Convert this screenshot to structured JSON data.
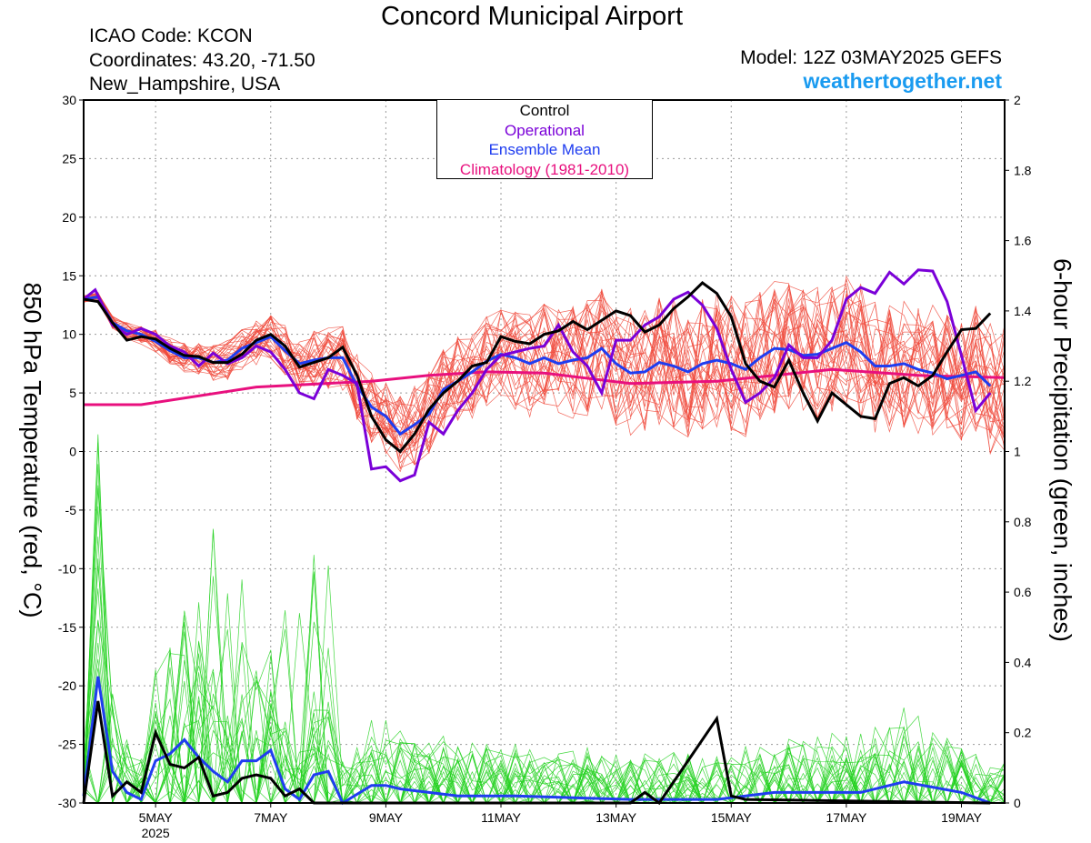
{
  "header": {
    "title": "Concord Municipal Airport",
    "icao": "ICAO Code: KCON",
    "coordinates": "Coordinates: 43.20, -71.50",
    "location": "New_Hampshire, USA",
    "model": "Model: 12Z 03MAY2025 GEFS",
    "website": "weathertogether.net"
  },
  "legend": {
    "items": [
      {
        "label": "Control",
        "color": "#000000"
      },
      {
        "label": "Operational",
        "color": "#7a00d8"
      },
      {
        "label": "Ensemble Mean",
        "color": "#1f3df0"
      },
      {
        "label": "Climatology (1981-2010)",
        "color": "#e8107e"
      }
    ]
  },
  "chart_data": {
    "type": "line",
    "ylabel": "850 hPa Temperature (red, °C)",
    "y2label": "6-hour Precipitation (green, inches)",
    "ylim": [
      -30,
      30
    ],
    "y2lim": [
      0,
      2
    ],
    "yticks": [
      "30",
      "25",
      "20",
      "15",
      "10",
      "5",
      "0",
      "-5",
      "-10",
      "-15",
      "-20",
      "-25",
      "-30"
    ],
    "y2ticks": [
      "2",
      "1.8",
      "1.6",
      "1.4",
      "1.2",
      "1",
      "0.8",
      "0.6",
      "0.4",
      "0.2",
      "0"
    ],
    "xlim": [
      0,
      16
    ],
    "xticks": [
      {
        "x": 1.25,
        "label": "5MAY",
        "sub": "2025"
      },
      {
        "x": 3.25,
        "label": "7MAY"
      },
      {
        "x": 5.25,
        "label": "9MAY"
      },
      {
        "x": 7.25,
        "label": "11MAY"
      },
      {
        "x": 9.25,
        "label": "13MAY"
      },
      {
        "x": 11.25,
        "label": "15MAY"
      },
      {
        "x": 13.25,
        "label": "17MAY"
      },
      {
        "x": 15.25,
        "label": "19MAY"
      }
    ],
    "grid": true,
    "x_units": "days since 12Z 03MAY2025",
    "colors": {
      "members_temp": "#f04a3c",
      "members_precip": "#22d11f",
      "control": "#000000",
      "operational": "#7a00d8",
      "mean": "#1f3df0",
      "climatology": "#e8107e"
    },
    "climatology": [
      [
        0,
        4
      ],
      [
        1,
        4
      ],
      [
        3,
        5.5
      ],
      [
        5,
        6
      ],
      [
        6,
        6.5
      ],
      [
        7,
        6.8
      ],
      [
        8,
        6.7
      ],
      [
        9.5,
        5.8
      ],
      [
        11,
        6
      ],
      [
        13,
        7
      ],
      [
        14.5,
        6.5
      ],
      [
        16,
        6.3
      ]
    ],
    "control_temp": [
      [
        0,
        13
      ],
      [
        0.25,
        12.8
      ],
      [
        0.5,
        11
      ],
      [
        0.75,
        9.5
      ],
      [
        1,
        9.8
      ],
      [
        1.25,
        9.6
      ],
      [
        1.5,
        8.8
      ],
      [
        1.75,
        8.2
      ],
      [
        2,
        8.1
      ],
      [
        2.25,
        7.6
      ],
      [
        2.5,
        7.6
      ],
      [
        2.75,
        8.3
      ],
      [
        3,
        9.5
      ],
      [
        3.25,
        10
      ],
      [
        3.5,
        9
      ],
      [
        3.75,
        7.2
      ],
      [
        4,
        7.6
      ],
      [
        4.25,
        8
      ],
      [
        4.5,
        8.9
      ],
      [
        4.75,
        6.5
      ],
      [
        5,
        3
      ],
      [
        5.25,
        1
      ],
      [
        5.5,
        0
      ],
      [
        5.75,
        1.5
      ],
      [
        6,
        3.6
      ],
      [
        6.25,
        5
      ],
      [
        6.5,
        6
      ],
      [
        6.75,
        7.3
      ],
      [
        7,
        7.6
      ],
      [
        7.25,
        9.8
      ],
      [
        7.5,
        9.4
      ],
      [
        7.75,
        9.2
      ],
      [
        8,
        10
      ],
      [
        8.25,
        10.3
      ],
      [
        8.5,
        11.1
      ],
      [
        8.75,
        10.4
      ],
      [
        9,
        11.2
      ],
      [
        9.25,
        12
      ],
      [
        9.5,
        11.6
      ],
      [
        9.75,
        10.2
      ],
      [
        10,
        10.8
      ],
      [
        10.25,
        12.2
      ],
      [
        10.5,
        13.2
      ],
      [
        10.75,
        14.4
      ],
      [
        11,
        13.5
      ],
      [
        11.25,
        11.5
      ],
      [
        11.5,
        7.5
      ],
      [
        11.75,
        6
      ],
      [
        12,
        5.5
      ],
      [
        12.25,
        7.8
      ],
      [
        12.5,
        5
      ],
      [
        12.75,
        2.6
      ],
      [
        13,
        5
      ],
      [
        13.25,
        4
      ],
      [
        13.5,
        3
      ],
      [
        13.75,
        2.8
      ],
      [
        14,
        5.8
      ],
      [
        14.25,
        6.3
      ],
      [
        14.5,
        5.6
      ],
      [
        14.75,
        6.5
      ],
      [
        15,
        8.5
      ],
      [
        15.25,
        10.4
      ],
      [
        15.5,
        10.5
      ],
      [
        15.75,
        11.8
      ]
    ],
    "operational_temp": [
      [
        0,
        13
      ],
      [
        0.2,
        13.8
      ],
      [
        0.5,
        10.8
      ],
      [
        0.75,
        10
      ],
      [
        1,
        10.5
      ],
      [
        1.25,
        10
      ],
      [
        1.5,
        9
      ],
      [
        1.75,
        8.5
      ],
      [
        2,
        7.3
      ],
      [
        2.25,
        8.4
      ],
      [
        2.5,
        7.5
      ],
      [
        2.75,
        8
      ],
      [
        3,
        9
      ],
      [
        3.25,
        8.5
      ],
      [
        3.5,
        7
      ],
      [
        3.75,
        5
      ],
      [
        4,
        4.5
      ],
      [
        4.25,
        7
      ],
      [
        4.5,
        6.5
      ],
      [
        4.75,
        5.8
      ],
      [
        5,
        -1.5
      ],
      [
        5.25,
        -1.3
      ],
      [
        5.5,
        -2.5
      ],
      [
        5.75,
        -2
      ],
      [
        6,
        2.5
      ],
      [
        6.25,
        1.5
      ],
      [
        6.5,
        3.5
      ],
      [
        6.75,
        5
      ],
      [
        7,
        7
      ],
      [
        7.25,
        8.2
      ],
      [
        7.5,
        8.5
      ],
      [
        7.75,
        8.8
      ],
      [
        8,
        9
      ],
      [
        8.25,
        10.8
      ],
      [
        8.5,
        8.5
      ],
      [
        8.75,
        7.3
      ],
      [
        9,
        5
      ],
      [
        9.25,
        9.5
      ],
      [
        9.5,
        9.5
      ],
      [
        9.75,
        10.8
      ],
      [
        10,
        11.5
      ],
      [
        10.25,
        13
      ],
      [
        10.5,
        13.6
      ],
      [
        10.75,
        12.5
      ],
      [
        11,
        10.5
      ],
      [
        11.25,
        7
      ],
      [
        11.5,
        4.2
      ],
      [
        11.75,
        5
      ],
      [
        12,
        6.3
      ],
      [
        12.25,
        9.1
      ],
      [
        12.5,
        8
      ],
      [
        12.75,
        8
      ],
      [
        13,
        9.5
      ],
      [
        13.25,
        13
      ],
      [
        13.5,
        14
      ],
      [
        13.75,
        13.5
      ],
      [
        14,
        15.3
      ],
      [
        14.25,
        14.3
      ],
      [
        14.5,
        15.5
      ],
      [
        14.75,
        15.4
      ],
      [
        15,
        12.8
      ],
      [
        15.25,
        8.2
      ],
      [
        15.5,
        3.5
      ],
      [
        15.75,
        5
      ]
    ],
    "mean_temp": [
      [
        0,
        13
      ],
      [
        0.25,
        13.2
      ],
      [
        0.5,
        11
      ],
      [
        0.75,
        10.3
      ],
      [
        1,
        10
      ],
      [
        1.25,
        9.4
      ],
      [
        1.5,
        8.6
      ],
      [
        1.75,
        8
      ],
      [
        2,
        8
      ],
      [
        2.25,
        7.6
      ],
      [
        2.5,
        7.8
      ],
      [
        2.75,
        8.8
      ],
      [
        3,
        9.3
      ],
      [
        3.25,
        9.8
      ],
      [
        3.5,
        8.6
      ],
      [
        3.75,
        7.5
      ],
      [
        4,
        7.8
      ],
      [
        4.25,
        8
      ],
      [
        4.5,
        8
      ],
      [
        4.75,
        5.6
      ],
      [
        5,
        3.8
      ],
      [
        5.25,
        3
      ],
      [
        5.5,
        1.5
      ],
      [
        5.75,
        2.3
      ],
      [
        6,
        3.2
      ],
      [
        6.25,
        5.3
      ],
      [
        6.5,
        6
      ],
      [
        6.75,
        6.8
      ],
      [
        7,
        7.7
      ],
      [
        7.25,
        8.3
      ],
      [
        7.5,
        8
      ],
      [
        7.75,
        7.5
      ],
      [
        8,
        8
      ],
      [
        8.25,
        7.5
      ],
      [
        8.5,
        7.8
      ],
      [
        8.75,
        8
      ],
      [
        9,
        8.8
      ],
      [
        9.25,
        7.5
      ],
      [
        9.5,
        6.7
      ],
      [
        9.75,
        6.8
      ],
      [
        10,
        7.6
      ],
      [
        10.25,
        7.3
      ],
      [
        10.5,
        6.8
      ],
      [
        10.75,
        7.5
      ],
      [
        11,
        7.8
      ],
      [
        11.25,
        7.5
      ],
      [
        11.5,
        7
      ],
      [
        11.75,
        8
      ],
      [
        12,
        8.8
      ],
      [
        12.25,
        8.7
      ],
      [
        12.5,
        8.2
      ],
      [
        12.75,
        8.3
      ],
      [
        13,
        8.8
      ],
      [
        13.25,
        9.3
      ],
      [
        13.5,
        8.5
      ],
      [
        13.75,
        7.3
      ],
      [
        14,
        7.3
      ],
      [
        14.25,
        7.5
      ],
      [
        14.5,
        7
      ],
      [
        14.75,
        6.7
      ],
      [
        15,
        6.2
      ],
      [
        15.25,
        6.5
      ],
      [
        15.5,
        6.8
      ],
      [
        15.75,
        5.6
      ]
    ],
    "control_precip": [
      [
        0,
        0
      ],
      [
        0.25,
        0.29
      ],
      [
        0.5,
        0.02
      ],
      [
        0.75,
        0.06
      ],
      [
        1,
        0.03
      ],
      [
        1.25,
        0.2
      ],
      [
        1.5,
        0.11
      ],
      [
        1.75,
        0.1
      ],
      [
        2,
        0.13
      ],
      [
        2.25,
        0.02
      ],
      [
        2.5,
        0.03
      ],
      [
        2.75,
        0.07
      ],
      [
        3,
        0.08
      ],
      [
        3.25,
        0.07
      ],
      [
        3.5,
        0.02
      ],
      [
        3.75,
        0.04
      ],
      [
        4,
        0
      ],
      [
        15.75,
        0
      ],
      [
        9.5,
        0
      ],
      [
        9.75,
        0.03
      ],
      [
        10,
        0
      ],
      [
        11,
        0.24
      ],
      [
        11.25,
        0.02
      ],
      [
        11.5,
        0.01
      ]
    ],
    "mean_precip": [
      [
        0,
        0.02
      ],
      [
        0.25,
        0.36
      ],
      [
        0.5,
        0.09
      ],
      [
        0.75,
        0.03
      ],
      [
        1,
        0.01
      ],
      [
        1.25,
        0.12
      ],
      [
        1.5,
        0.14
      ],
      [
        1.75,
        0.18
      ],
      [
        2,
        0.13
      ],
      [
        2.25,
        0.09
      ],
      [
        2.5,
        0.06
      ],
      [
        2.75,
        0.12
      ],
      [
        3,
        0.12
      ],
      [
        3.25,
        0.15
      ],
      [
        3.5,
        0.04
      ],
      [
        3.75,
        0.01
      ],
      [
        4,
        0.08
      ],
      [
        4.25,
        0.09
      ],
      [
        4.5,
        0
      ],
      [
        5,
        0.05
      ],
      [
        5.25,
        0.05
      ],
      [
        5.5,
        0.04
      ],
      [
        6.5,
        0.02
      ],
      [
        7.5,
        0.02
      ],
      [
        9.5,
        0.01
      ],
      [
        11,
        0.01
      ],
      [
        12,
        0.03
      ],
      [
        13.5,
        0.03
      ],
      [
        14.25,
        0.06
      ],
      [
        15.25,
        0.03
      ],
      [
        15.75,
        0
      ]
    ]
  }
}
